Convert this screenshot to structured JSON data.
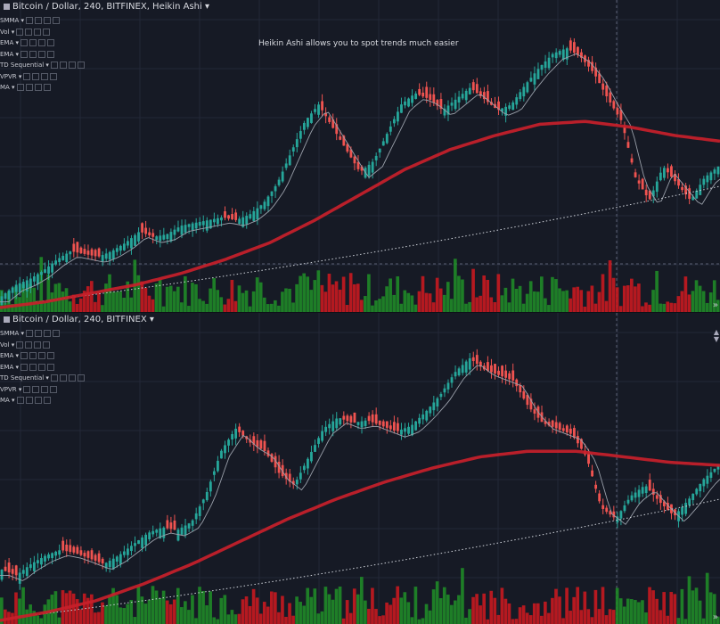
{
  "colors": {
    "up": "#26a69a",
    "down": "#ef5350",
    "vol_up": "#1f8a28",
    "vol_down": "#c61a20",
    "slow_ma": "#c8202a",
    "fast_ma": "#9aa0aa",
    "grid": "#232838"
  },
  "panes": [
    {
      "id": "pane1",
      "title": "Bitcoin / Dollar, 240, BITFINEX, Heikin Ashi",
      "indicators": [
        "SMMA",
        "Vol",
        "EMA",
        "EMA",
        "TD Sequential",
        "VPVR",
        "MA"
      ],
      "annotation": "Heikin Ashi allows you to spot trends much easier",
      "expand_glyph": "»",
      "seed": 7
    },
    {
      "id": "pane2",
      "title": "Bitcoin / Dollar, 240, BITFINEX",
      "indicators": [
        "SMMA",
        "Vol",
        "EMA",
        "EMA",
        "TD Sequential",
        "VPVR",
        "MA"
      ],
      "annotation": "",
      "expand_glyph": "»",
      "seed": 11
    }
  ],
  "chart_data": [
    {
      "type": "candlestick",
      "title": "Bitcoin / Dollar, 240, BITFINEX, Heikin Ashi",
      "price_path": [
        0.04,
        0.08,
        0.1,
        0.13,
        0.17,
        0.2,
        0.19,
        0.18,
        0.2,
        0.23,
        0.27,
        0.25,
        0.26,
        0.29,
        0.3,
        0.31,
        0.32,
        0.31,
        0.33,
        0.37,
        0.44,
        0.55,
        0.66,
        0.72,
        0.64,
        0.56,
        0.48,
        0.52,
        0.62,
        0.72,
        0.76,
        0.74,
        0.7,
        0.74,
        0.78,
        0.74,
        0.7,
        0.72,
        0.79,
        0.85,
        0.9,
        0.92,
        0.89,
        0.83,
        0.74,
        0.66,
        0.46,
        0.38,
        0.5,
        0.44,
        0.38,
        0.46,
        0.5
      ],
      "slow_ma_path": [
        0.0,
        0.02,
        0.05,
        0.08,
        0.12,
        0.17,
        0.23,
        0.31,
        0.4,
        0.49,
        0.56,
        0.61,
        0.65,
        0.66,
        0.64,
        0.61,
        0.59
      ]
    },
    {
      "type": "candlestick",
      "title": "Bitcoin / Dollar, 240, BITFINEX",
      "price_path": [
        0.18,
        0.16,
        0.2,
        0.23,
        0.25,
        0.24,
        0.22,
        0.2,
        0.23,
        0.27,
        0.31,
        0.33,
        0.32,
        0.35,
        0.45,
        0.6,
        0.68,
        0.63,
        0.6,
        0.52,
        0.48,
        0.58,
        0.68,
        0.72,
        0.7,
        0.71,
        0.69,
        0.67,
        0.69,
        0.74,
        0.8,
        0.88,
        0.93,
        0.89,
        0.87,
        0.85,
        0.76,
        0.7,
        0.68,
        0.66,
        0.58,
        0.4,
        0.36,
        0.44,
        0.48,
        0.42,
        0.37,
        0.43,
        0.5,
        0.55
      ],
      "slow_ma_path": [
        0.0,
        0.03,
        0.07,
        0.13,
        0.2,
        0.28,
        0.36,
        0.43,
        0.49,
        0.54,
        0.58,
        0.6,
        0.6,
        0.58,
        0.56,
        0.55
      ]
    }
  ]
}
